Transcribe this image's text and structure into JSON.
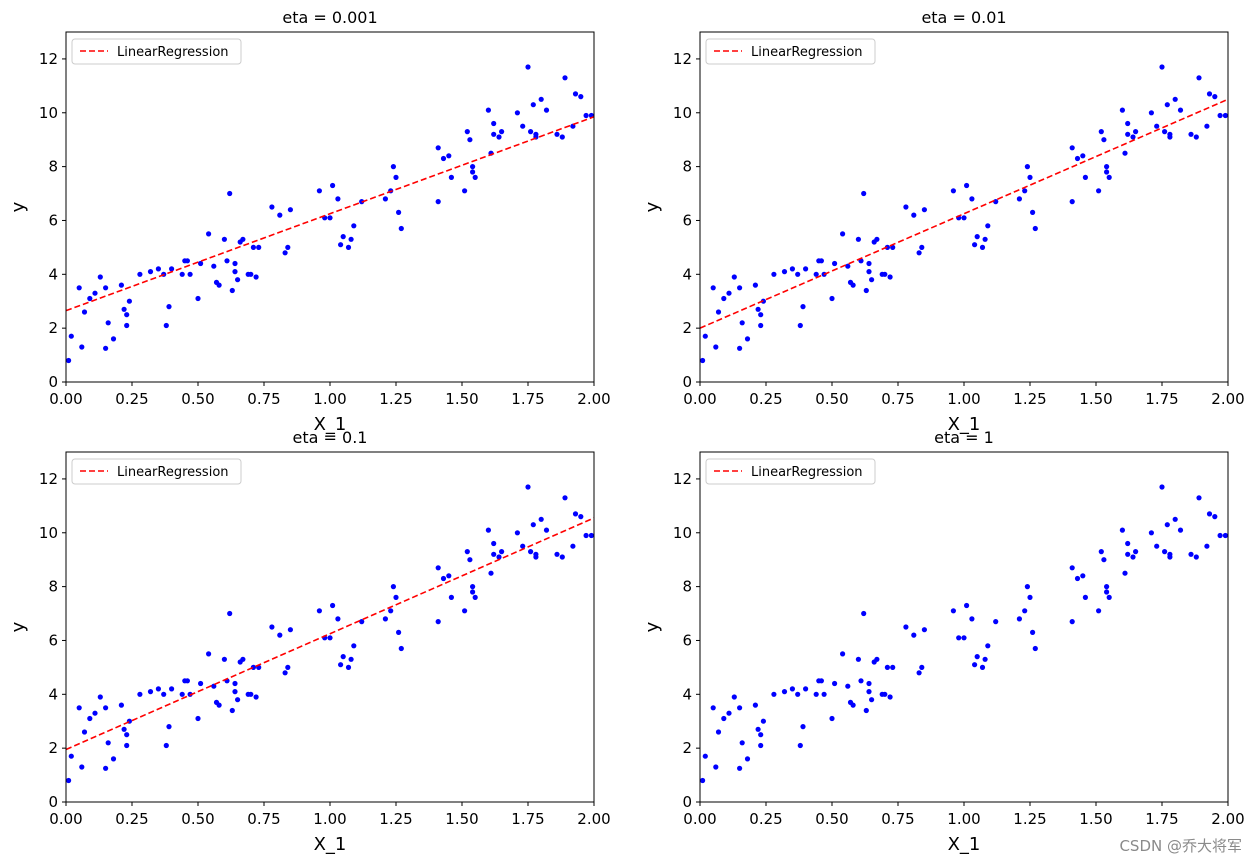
{
  "scatter": {
    "x": [
      0.01,
      0.02,
      0.05,
      0.06,
      0.07,
      0.09,
      0.11,
      0.13,
      0.15,
      0.15,
      0.16,
      0.18,
      0.21,
      0.22,
      0.23,
      0.23,
      0.24,
      0.28,
      0.32,
      0.35,
      0.37,
      0.38,
      0.39,
      0.4,
      0.44,
      0.45,
      0.46,
      0.47,
      0.5,
      0.51,
      0.54,
      0.56,
      0.57,
      0.58,
      0.6,
      0.61,
      0.62,
      0.63,
      0.64,
      0.64,
      0.65,
      0.66,
      0.67,
      0.69,
      0.7,
      0.71,
      0.72,
      0.73,
      0.78,
      0.81,
      0.83,
      0.84,
      0.85,
      0.96,
      0.98,
      1.0,
      1.01,
      1.03,
      1.04,
      1.05,
      1.07,
      1.08,
      1.09,
      1.12,
      1.21,
      1.23,
      1.24,
      1.25,
      1.26,
      1.27,
      1.41,
      1.41,
      1.43,
      1.45,
      1.46,
      1.51,
      1.52,
      1.53,
      1.54,
      1.54,
      1.55,
      1.6,
      1.61,
      1.62,
      1.62,
      1.64,
      1.65,
      1.71,
      1.73,
      1.75,
      1.76,
      1.77,
      1.78,
      1.78,
      1.8,
      1.82,
      1.86,
      1.88,
      1.89,
      1.92,
      1.93,
      1.95,
      1.97,
      1.99
    ],
    "y": [
      0.8,
      1.7,
      3.5,
      1.3,
      2.6,
      3.1,
      3.3,
      3.9,
      3.5,
      1.25,
      2.2,
      1.6,
      3.6,
      2.7,
      2.1,
      2.5,
      3.0,
      4.0,
      4.1,
      4.2,
      4.0,
      2.1,
      2.8,
      4.2,
      4.0,
      4.5,
      4.5,
      4.0,
      3.1,
      4.4,
      5.5,
      4.3,
      3.7,
      3.6,
      5.3,
      4.5,
      7.0,
      3.4,
      4.4,
      4.1,
      3.8,
      5.2,
      5.3,
      4.0,
      4.0,
      5.0,
      3.9,
      5.0,
      6.5,
      6.2,
      4.8,
      5.0,
      6.4,
      7.1,
      6.1,
      6.1,
      7.3,
      6.8,
      5.1,
      5.4,
      5.0,
      5.3,
      5.8,
      6.7,
      6.8,
      7.1,
      8.0,
      7.6,
      6.3,
      5.7,
      8.7,
      6.7,
      8.3,
      8.4,
      7.6,
      7.1,
      9.3,
      9.0,
      8.0,
      7.8,
      7.6,
      10.1,
      8.5,
      9.2,
      9.6,
      9.1,
      9.3,
      10.0,
      9.5,
      11.7,
      9.3,
      10.3,
      9.1,
      9.2,
      10.5,
      10.1,
      9.2,
      9.1,
      11.3,
      9.5,
      10.7,
      10.6,
      9.9,
      9.9
    ]
  },
  "chart_data": [
    {
      "type": "scatter",
      "title": "eta = 0.001",
      "xlabel": "X_1",
      "ylabel": "y",
      "xlim": [
        0,
        2
      ],
      "ylim": [
        0,
        13
      ],
      "legend": "LinearRegression",
      "legend_loc": "upper-left",
      "line": {
        "x": [
          0,
          2
        ],
        "y": [
          2.65,
          9.85
        ]
      },
      "xticks": [
        "0.00",
        "0.25",
        "0.50",
        "0.75",
        "1.00",
        "1.25",
        "1.50",
        "1.75",
        "2.00"
      ],
      "yticks": [
        "0",
        "2",
        "4",
        "6",
        "8",
        "10",
        "12"
      ]
    },
    {
      "type": "scatter",
      "title": "eta = 0.01",
      "xlabel": "X_1",
      "ylabel": "y",
      "xlim": [
        0,
        2
      ],
      "ylim": [
        0,
        13
      ],
      "legend": "LinearRegression",
      "legend_loc": "upper-left",
      "line": {
        "x": [
          0,
          2
        ],
        "y": [
          2.0,
          10.5
        ]
      },
      "xticks": [
        "0.00",
        "0.25",
        "0.50",
        "0.75",
        "1.00",
        "1.25",
        "1.50",
        "1.75",
        "2.00"
      ],
      "yticks": [
        "0",
        "2",
        "4",
        "6",
        "8",
        "10",
        "12"
      ]
    },
    {
      "type": "scatter",
      "title": "eta = 0.1",
      "xlabel": "X_1",
      "ylabel": "y",
      "xlim": [
        0,
        2
      ],
      "ylim": [
        0,
        13
      ],
      "legend": "LinearRegression",
      "legend_loc": "upper-left",
      "line": {
        "x": [
          0,
          2
        ],
        "y": [
          1.95,
          10.55
        ]
      },
      "xticks": [
        "0.00",
        "0.25",
        "0.50",
        "0.75",
        "1.00",
        "1.25",
        "1.50",
        "1.75",
        "2.00"
      ],
      "yticks": [
        "0",
        "2",
        "4",
        "6",
        "8",
        "10",
        "12"
      ]
    },
    {
      "type": "scatter",
      "title": "eta = 1",
      "xlabel": "X_1",
      "ylabel": "y",
      "xlim": [
        0,
        2
      ],
      "ylim": [
        0,
        13
      ],
      "legend": "LinearRegression",
      "legend_loc": "upper-left",
      "line": null,
      "xticks": [
        "0.00",
        "0.25",
        "0.50",
        "0.75",
        "1.00",
        "1.25",
        "1.50",
        "1.75",
        "2.00"
      ],
      "yticks": [
        "0",
        "2",
        "4",
        "6",
        "8",
        "10",
        "12"
      ]
    }
  ],
  "colors": {
    "points": "#0000ff",
    "line": "#ff0000",
    "axes": "#000000",
    "legend_border": "#cccccc"
  },
  "watermark": "CSDN @乔大将军"
}
